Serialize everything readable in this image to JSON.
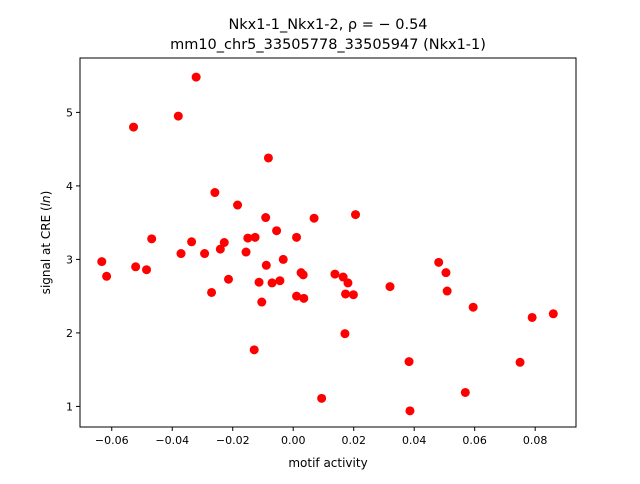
{
  "chart_data": {
    "type": "scatter",
    "title_line1": "Nkx1-1_Nkx1-2, ρ = − 0.54",
    "title_line2": "mm10_chr5_33505778_33505947 (Nkx1-1)",
    "xlabel": "motif activity",
    "ylabel": "signal at CRE (ln)",
    "xlim": [
      -0.0705,
      0.0935
    ],
    "ylim": [
      0.72,
      5.74
    ],
    "x_ticks": [
      {
        "value": -0.06,
        "label": "−0.06"
      },
      {
        "value": -0.04,
        "label": "−0.04"
      },
      {
        "value": -0.02,
        "label": "−0.02"
      },
      {
        "value": 0.0,
        "label": "0.00"
      },
      {
        "value": 0.02,
        "label": "0.02"
      },
      {
        "value": 0.04,
        "label": "0.04"
      },
      {
        "value": 0.06,
        "label": "0.06"
      },
      {
        "value": 0.08,
        "label": "0.08"
      }
    ],
    "y_ticks": [
      {
        "value": 1,
        "label": "1"
      },
      {
        "value": 2,
        "label": "2"
      },
      {
        "value": 3,
        "label": "3"
      },
      {
        "value": 4,
        "label": "4"
      },
      {
        "value": 5,
        "label": "5"
      }
    ],
    "grid": false,
    "marker_color": "#ff0000",
    "points": [
      [
        -0.0633,
        2.97
      ],
      [
        -0.0617,
        2.77
      ],
      [
        -0.0528,
        4.8
      ],
      [
        -0.0521,
        2.9
      ],
      [
        -0.0485,
        2.86
      ],
      [
        -0.0468,
        3.28
      ],
      [
        -0.038,
        4.95
      ],
      [
        -0.0371,
        3.08
      ],
      [
        -0.0336,
        3.24
      ],
      [
        -0.0321,
        5.48
      ],
      [
        -0.0293,
        3.08
      ],
      [
        -0.027,
        2.55
      ],
      [
        -0.0259,
        3.91
      ],
      [
        -0.0241,
        3.14
      ],
      [
        -0.0228,
        3.23
      ],
      [
        -0.0214,
        2.73
      ],
      [
        -0.0184,
        3.74
      ],
      [
        -0.0156,
        3.1
      ],
      [
        -0.015,
        3.29
      ],
      [
        -0.0129,
        1.77
      ],
      [
        -0.0126,
        3.3
      ],
      [
        -0.0113,
        2.69
      ],
      [
        -0.0104,
        2.42
      ],
      [
        -0.0091,
        3.57
      ],
      [
        -0.0089,
        2.92
      ],
      [
        -0.0082,
        4.38
      ],
      [
        -0.007,
        2.68
      ],
      [
        -0.0055,
        3.39
      ],
      [
        -0.0044,
        2.71
      ],
      [
        -0.0033,
        3.0
      ],
      [
        0.0011,
        3.3
      ],
      [
        0.0011,
        2.5
      ],
      [
        0.0026,
        2.82
      ],
      [
        0.0033,
        2.79
      ],
      [
        0.0035,
        2.47
      ],
      [
        0.0069,
        3.56
      ],
      [
        0.0094,
        1.11
      ],
      [
        0.0138,
        2.8
      ],
      [
        0.0165,
        2.76
      ],
      [
        0.0171,
        1.99
      ],
      [
        0.0173,
        2.53
      ],
      [
        0.0181,
        2.68
      ],
      [
        0.0199,
        2.52
      ],
      [
        0.0206,
        3.61
      ],
      [
        0.032,
        2.63
      ],
      [
        0.0383,
        1.61
      ],
      [
        0.0386,
        0.94
      ],
      [
        0.0481,
        2.96
      ],
      [
        0.0505,
        2.82
      ],
      [
        0.0509,
        2.57
      ],
      [
        0.0569,
        1.19
      ],
      [
        0.0595,
        2.35
      ],
      [
        0.075,
        1.6
      ],
      [
        0.079,
        2.21
      ],
      [
        0.086,
        2.26
      ]
    ]
  }
}
